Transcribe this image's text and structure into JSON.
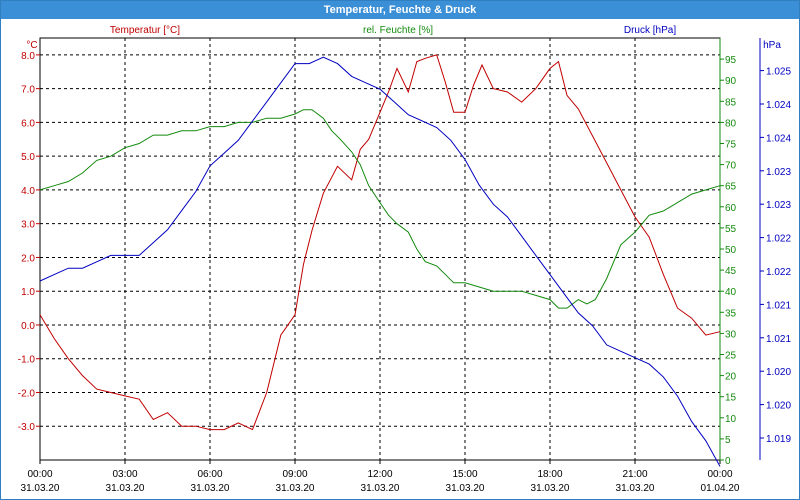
{
  "window": {
    "title": "Temperatur, Feuchte & Druck"
  },
  "colors": {
    "temp": "#c00000",
    "hum": "#138a0d",
    "press": "#0000c0",
    "grid": "#000000"
  },
  "chart_data": {
    "type": "line",
    "title": "Temperatur, Feuchte & Druck",
    "grid": true,
    "x_ticks": [
      {
        "time": "00:00",
        "date": "31.03.20"
      },
      {
        "time": "03:00",
        "date": "31.03.20"
      },
      {
        "time": "06:00",
        "date": "31.03.20"
      },
      {
        "time": "09:00",
        "date": "31.03.20"
      },
      {
        "time": "12:00",
        "date": "31.03.20"
      },
      {
        "time": "15:00",
        "date": "31.03.20"
      },
      {
        "time": "18:00",
        "date": "31.03.20"
      },
      {
        "time": "21:00",
        "date": "31.03.20"
      },
      {
        "time": "00:00",
        "date": "01.04.20"
      }
    ],
    "x_range_hours": [
      0,
      24
    ],
    "axes": {
      "left": {
        "unit": "°C",
        "min": -4,
        "max": 8.5,
        "ticks": [
          "8.0",
          "7.0",
          "6.0",
          "5.0",
          "4.0",
          "3.0",
          "2.0",
          "1.0",
          "0.0",
          "-1.0",
          "-2.0",
          "-3.0"
        ]
      },
      "right1": {
        "unit": "%",
        "min": 0,
        "max": 100,
        "ticks": [
          "0",
          "5",
          "10",
          "15",
          "20",
          "25",
          "30",
          "35",
          "40",
          "45",
          "50",
          "55",
          "60",
          "65",
          "70",
          "75",
          "80",
          "85",
          "90",
          "95"
        ]
      },
      "right2": {
        "unit": "hPa",
        "min": 1019,
        "max": 1025.6,
        "ticks": [
          "1.019",
          "1.020",
          "1.020",
          "1.021",
          "1.021",
          "1.022",
          "1.022",
          "1.023",
          "1.023",
          "1.024",
          "1.024",
          "1.025"
        ]
      }
    },
    "series": [
      {
        "name": "Temperatur [°C]",
        "axis": "left",
        "x": [
          0,
          0.5,
          1,
          1.5,
          2,
          2.5,
          3,
          3.5,
          4,
          4.5,
          5,
          5.5,
          6,
          6.5,
          7,
          7.5,
          8,
          8.5,
          9,
          9.3,
          9.6,
          10,
          10.5,
          11,
          11.3,
          11.6,
          12,
          12.3,
          12.6,
          13,
          13.3,
          13.6,
          14,
          14.3,
          14.6,
          15,
          15.3,
          15.6,
          16,
          16.5,
          17,
          17.5,
          18,
          18.3,
          18.6,
          19,
          19.5,
          20,
          20.5,
          21,
          21.5,
          22,
          22.5,
          23,
          23.5,
          24
        ],
        "values": [
          0.3,
          -0.4,
          -1.0,
          -1.5,
          -1.9,
          -2.0,
          -2.1,
          -2.2,
          -2.8,
          -2.6,
          -3.0,
          -3.0,
          -3.1,
          -3.1,
          -2.9,
          -3.1,
          -2.0,
          -0.3,
          0.3,
          1.8,
          2.8,
          3.9,
          4.7,
          4.3,
          5.2,
          5.5,
          6.3,
          6.9,
          7.6,
          6.9,
          7.8,
          7.9,
          8.0,
          7.2,
          6.3,
          6.3,
          7.1,
          7.7,
          7.0,
          6.9,
          6.6,
          7.0,
          7.6,
          7.8,
          6.8,
          6.4,
          5.6,
          4.8,
          4.0,
          3.2,
          2.6,
          1.5,
          0.5,
          0.2,
          -0.3,
          -0.2
        ]
      },
      {
        "name": "rel. Feuchte [%]",
        "axis": "right1",
        "x": [
          0,
          0.5,
          1,
          1.5,
          2,
          2.5,
          3,
          3.5,
          4,
          4.5,
          5,
          5.5,
          6,
          6.5,
          7,
          7.5,
          8,
          8.5,
          9,
          9.3,
          9.6,
          10,
          10.3,
          10.6,
          11,
          11.3,
          11.6,
          12,
          12.3,
          12.6,
          13,
          13.3,
          13.6,
          14,
          14.3,
          14.6,
          15,
          15.5,
          16,
          16.5,
          17,
          17.5,
          18,
          18.3,
          18.6,
          19,
          19.3,
          19.6,
          20,
          20.5,
          21,
          21.5,
          22,
          22.5,
          23,
          23.5,
          24
        ],
        "values": [
          64,
          65,
          66,
          68,
          71,
          72,
          74,
          75,
          77,
          77,
          78,
          78,
          79,
          79,
          80,
          80,
          81,
          81,
          82,
          83,
          83,
          81,
          78,
          76,
          73,
          70,
          65,
          61,
          58,
          56,
          54,
          50,
          47,
          46,
          44,
          42,
          42,
          41,
          40,
          40,
          40,
          39,
          38,
          36,
          36,
          38,
          37,
          38,
          43,
          51,
          54,
          58,
          59,
          61,
          63,
          64,
          65
        ]
      },
      {
        "name": "Druck [hPa]",
        "axis": "right2",
        "x": [
          0,
          0.5,
          1,
          1.5,
          2,
          2.5,
          3,
          3.5,
          4,
          4.5,
          5,
          5.5,
          6,
          6.5,
          7,
          7.5,
          8,
          8.5,
          9,
          9.5,
          10,
          10.5,
          11,
          11.5,
          12,
          12.5,
          13,
          13.5,
          14,
          14.5,
          15,
          15.5,
          16,
          16.5,
          17,
          17.5,
          18,
          18.5,
          19,
          19.5,
          20,
          20.5,
          21,
          21.5,
          22,
          22.5,
          23,
          23.5,
          24
        ],
        "values": [
          1021.8,
          1021.9,
          1022.0,
          1022.0,
          1022.1,
          1022.2,
          1022.2,
          1022.2,
          1022.4,
          1022.6,
          1022.9,
          1023.2,
          1023.6,
          1023.8,
          1024.0,
          1024.3,
          1024.6,
          1024.9,
          1025.2,
          1025.2,
          1025.3,
          1025.2,
          1025.0,
          1024.9,
          1024.8,
          1024.6,
          1024.4,
          1024.3,
          1024.2,
          1024.0,
          1023.7,
          1023.3,
          1023.0,
          1022.8,
          1022.5,
          1022.2,
          1021.9,
          1021.6,
          1021.3,
          1021.1,
          1020.8,
          1020.7,
          1020.6,
          1020.5,
          1020.3,
          1020.0,
          1019.6,
          1019.3,
          1018.9
        ]
      }
    ]
  }
}
